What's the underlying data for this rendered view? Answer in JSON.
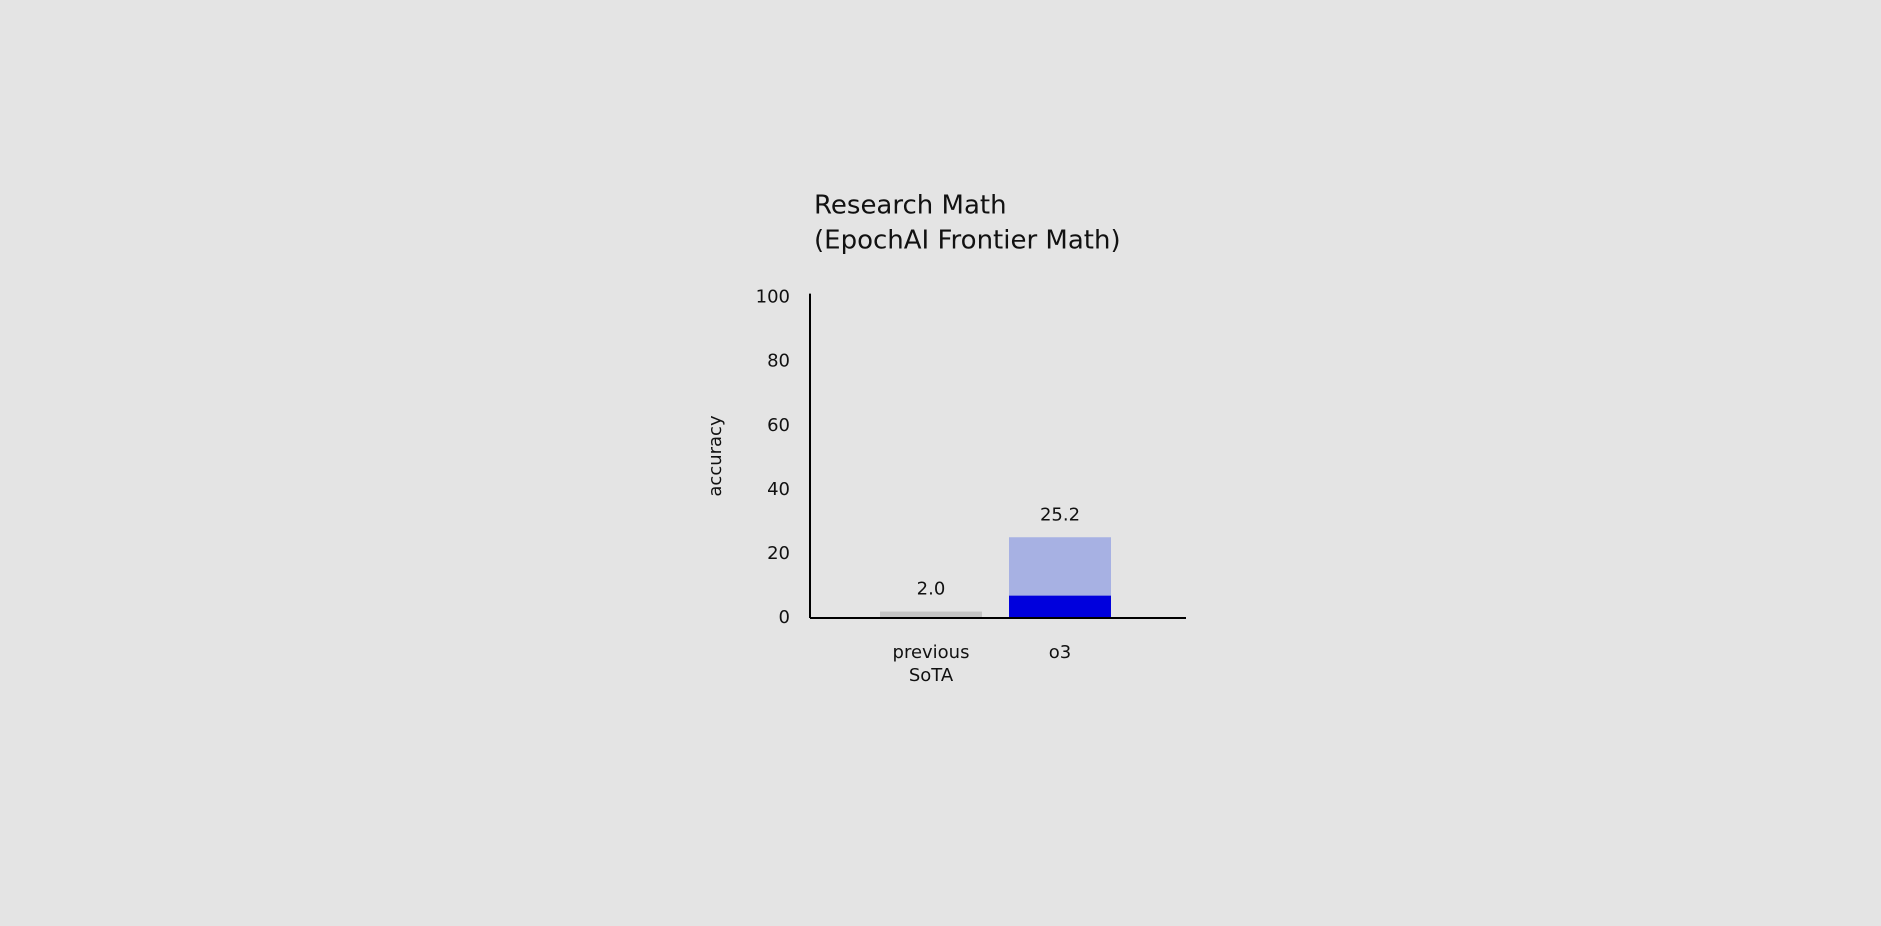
{
  "chart_data": {
    "type": "stacked_bar",
    "title": "Research Math",
    "subtitle": "(EpochAI Frontier Math)",
    "y_label": "accuracy",
    "categories": [
      "previous SoTA",
      "o3"
    ],
    "series": [
      {
        "colors": [
          "#c4c4c4",
          "#0000dd"
        ],
        "values": [
          2.0,
          7.0
        ]
      },
      {
        "color": "#a7b1e3",
        "values": [
          null,
          18.2
        ]
      }
    ],
    "totals": {
      "values": [
        2.0,
        25.2
      ],
      "value_labels": [
        "2.0",
        "25.2"
      ]
    },
    "ylim": [
      0,
      100
    ],
    "yticks": [
      0,
      20,
      40,
      60,
      80,
      100
    ],
    "grid": false
  }
}
